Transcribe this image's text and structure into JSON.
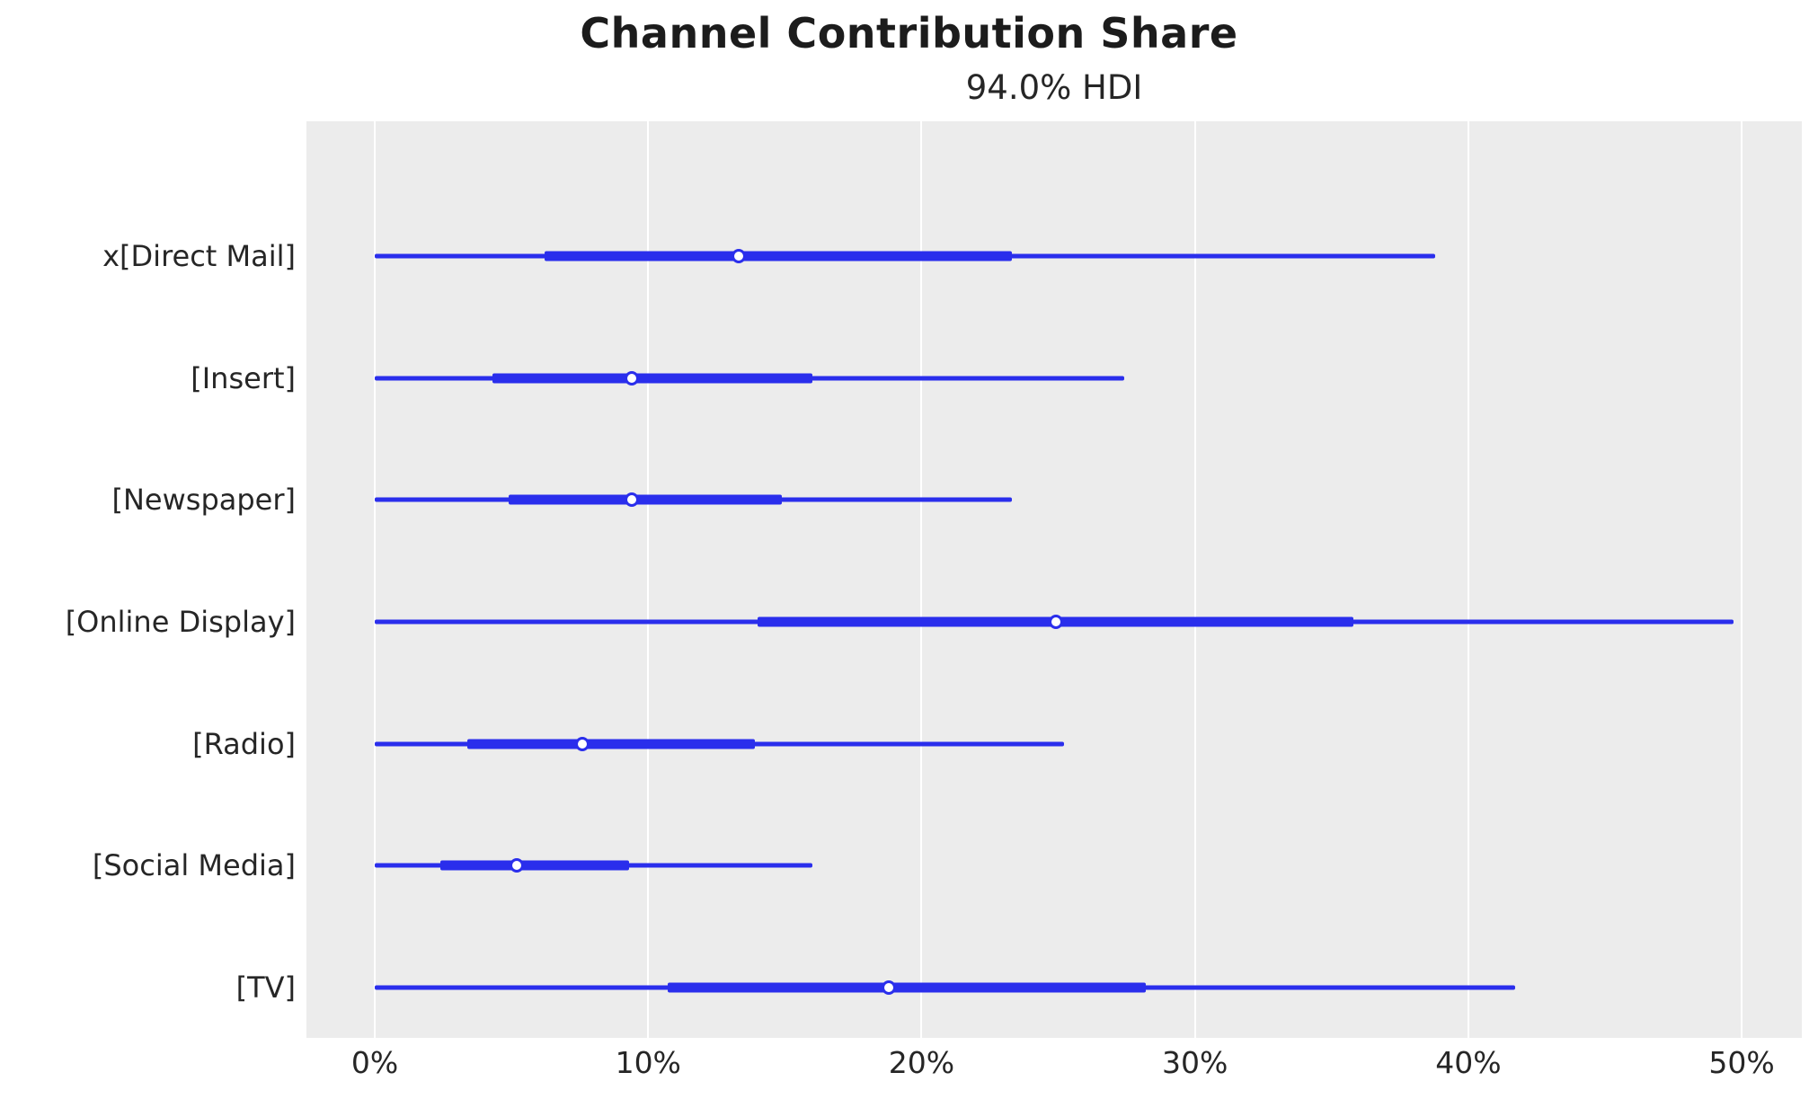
{
  "chart_data": {
    "type": "forest",
    "title": "Channel Contribution Share",
    "subtitle": "94.0% HDI",
    "xlabel": "",
    "ylabel": "",
    "x_unit": "percent",
    "xlim": [
      -2.5,
      52.3
    ],
    "x_tick_labels": [
      "0%",
      "10%",
      "20%",
      "30%",
      "40%",
      "50%"
    ],
    "x_tick_values": [
      0,
      10,
      20,
      30,
      40,
      50
    ],
    "grid": "vertical-white-on-gray",
    "legend": "none",
    "rows": [
      {
        "label": "x[Direct Mail]",
        "hdi_low": 0.0,
        "q_low": 6.2,
        "median": 13.3,
        "q_high": 23.3,
        "hdi_high": 38.8
      },
      {
        "label": "[Insert]",
        "hdi_low": 0.0,
        "q_low": 4.3,
        "median": 9.4,
        "q_high": 16.0,
        "hdi_high": 27.4
      },
      {
        "label": "[Newspaper]",
        "hdi_low": 0.0,
        "q_low": 4.9,
        "median": 9.4,
        "q_high": 14.9,
        "hdi_high": 23.3
      },
      {
        "label": "[Online Display]",
        "hdi_low": 0.0,
        "q_low": 14.0,
        "median": 24.9,
        "q_high": 35.8,
        "hdi_high": 49.7
      },
      {
        "label": "[Radio]",
        "hdi_low": 0.0,
        "q_low": 3.4,
        "median": 7.6,
        "q_high": 13.9,
        "hdi_high": 25.2
      },
      {
        "label": "[Social Media]",
        "hdi_low": 0.0,
        "q_low": 2.4,
        "median": 5.2,
        "q_high": 9.3,
        "hdi_high": 16.0
      },
      {
        "label": "[TV]",
        "hdi_low": 0.0,
        "q_low": 10.7,
        "median": 18.8,
        "q_high": 28.2,
        "hdi_high": 41.7
      }
    ],
    "colors": {
      "line": "#2a2eec",
      "marker_fill": "#ffffff",
      "marker_edge": "#2a2eec",
      "plot_background": "#ececec",
      "gridline": "#ffffff",
      "figure_background": "#ffffff",
      "text": "#262626"
    }
  }
}
